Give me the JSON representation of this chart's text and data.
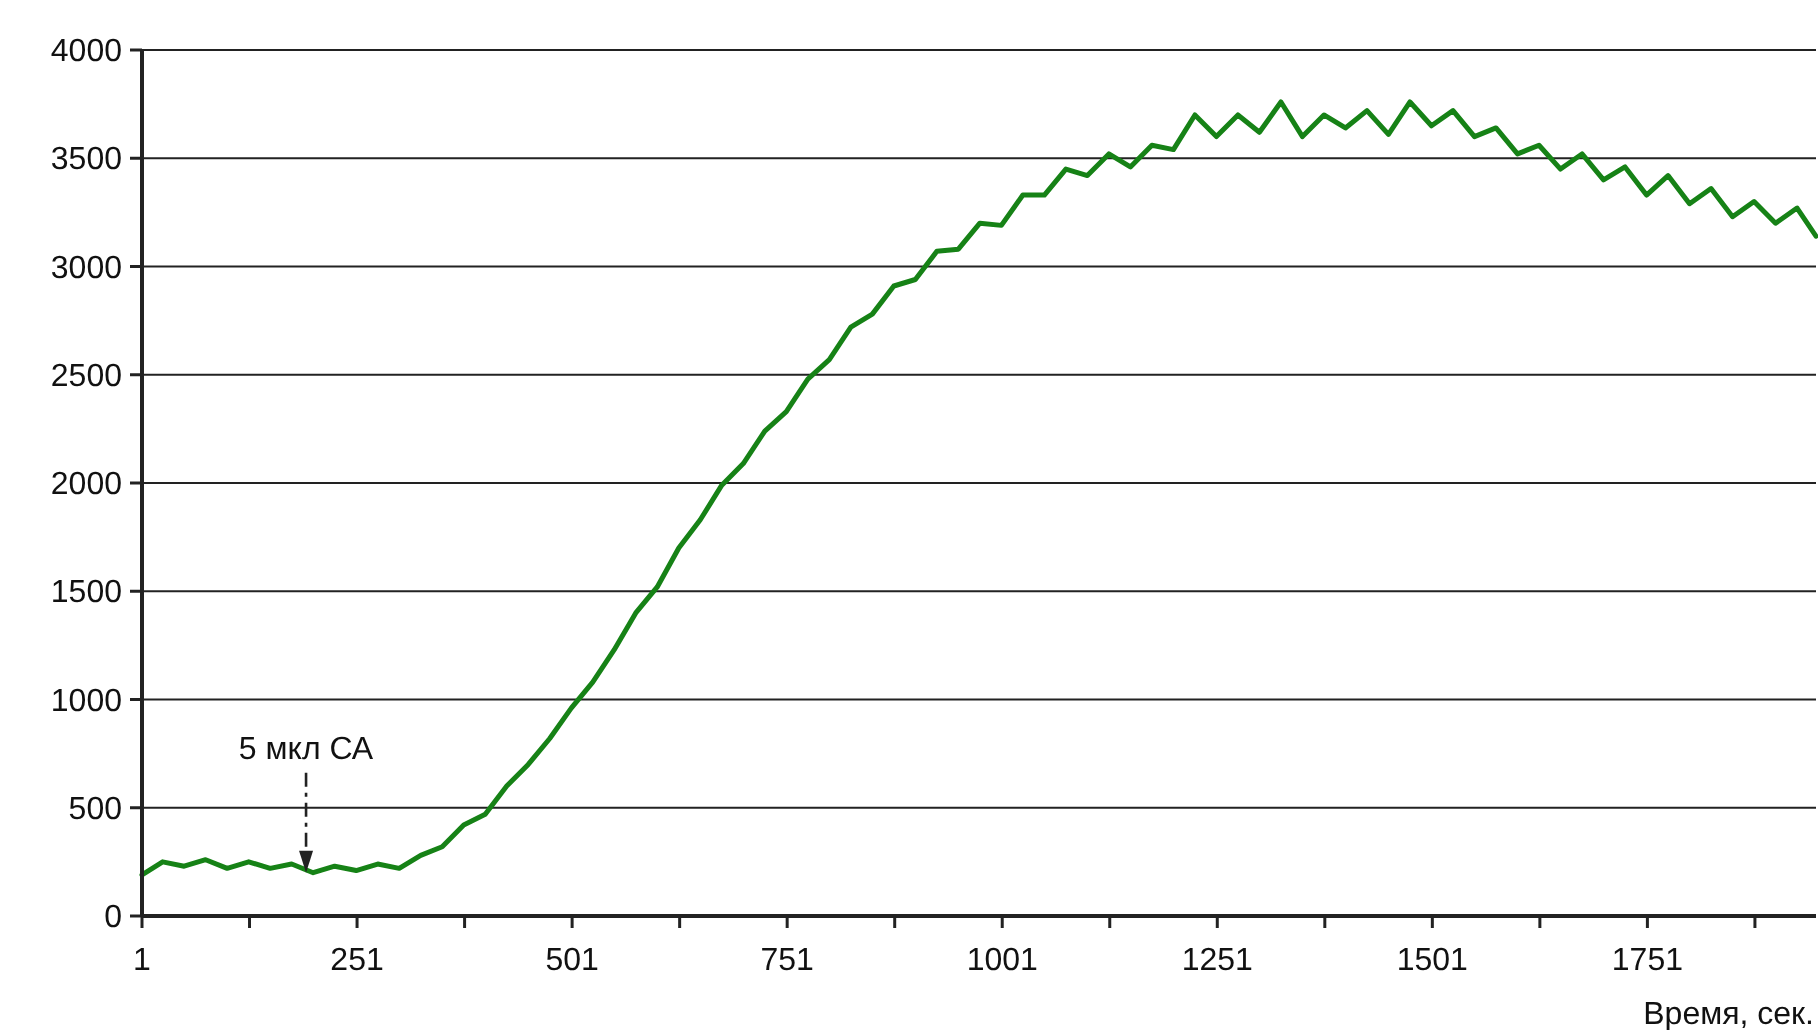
{
  "chart_data": {
    "type": "line",
    "xlabel": "Время, сек.",
    "x": [
      1,
      25,
      50,
      75,
      100,
      125,
      150,
      175,
      200,
      225,
      250,
      275,
      300,
      325,
      350,
      375,
      400,
      425,
      450,
      475,
      500,
      525,
      550,
      575,
      600,
      625,
      650,
      675,
      700,
      725,
      750,
      775,
      800,
      825,
      850,
      875,
      900,
      925,
      950,
      975,
      1000,
      1025,
      1050,
      1075,
      1100,
      1125,
      1150,
      1175,
      1200,
      1225,
      1250,
      1275,
      1300,
      1325,
      1350,
      1375,
      1400,
      1425,
      1450,
      1475,
      1500,
      1525,
      1550,
      1575,
      1600,
      1625,
      1650,
      1675,
      1700,
      1725,
      1750,
      1775,
      1800,
      1825,
      1850,
      1875,
      1900,
      1925,
      1947
    ],
    "series": [
      {
        "color": "#168216",
        "values": [
          190,
          250,
          230,
          260,
          220,
          250,
          220,
          240,
          200,
          230,
          210,
          240,
          220,
          280,
          320,
          420,
          470,
          600,
          700,
          820,
          960,
          1080,
          1230,
          1400,
          1520,
          1700,
          1830,
          1990,
          2090,
          2240,
          2330,
          2480,
          2570,
          2720,
          2780,
          2910,
          2940,
          3070,
          3080,
          3200,
          3190,
          3330,
          3330,
          3450,
          3420,
          3520,
          3460,
          3560,
          3540,
          3700,
          3600,
          3700,
          3620,
          3760,
          3600,
          3700,
          3640,
          3720,
          3610,
          3760,
          3650,
          3720,
          3600,
          3640,
          3520,
          3560,
          3450,
          3520,
          3400,
          3460,
          3330,
          3420,
          3290,
          3360,
          3230,
          3300,
          3200,
          3270,
          3140
        ]
      }
    ],
    "xlim": [
      1,
      1947
    ],
    "xticks": [
      1,
      {
        "value": 126,
        "label": null
      },
      251,
      {
        "value": 376,
        "label": null
      },
      501,
      {
        "value": 626,
        "label": null
      },
      751,
      {
        "value": 876,
        "label": null
      },
      1001,
      {
        "value": 1126,
        "label": null
      },
      1251,
      {
        "value": 1376,
        "label": null
      },
      1501,
      {
        "value": 1626,
        "label": null
      },
      1751,
      {
        "value": 1876,
        "label": null
      }
    ],
    "ylim": [
      0,
      4000
    ],
    "yticks": [
      0,
      500,
      1000,
      1500,
      2000,
      2500,
      3000,
      3500,
      4000
    ],
    "grid": "y",
    "annotations": [
      "5 мкл СА"
    ]
  }
}
